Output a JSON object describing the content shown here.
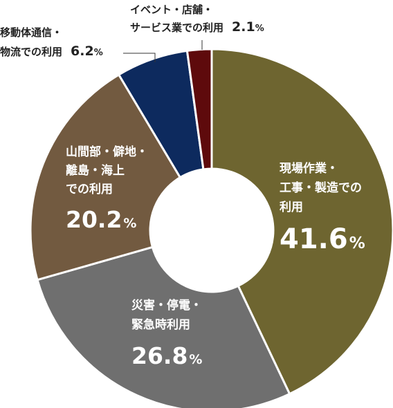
{
  "chart_data": {
    "type": "pie",
    "title": "",
    "legend": "none",
    "slices": [
      {
        "lines": [
          "現場作業・",
          "工事・製造での",
          "利用"
        ],
        "pct": "41.6",
        "value": 41.6,
        "color": "#6e6530",
        "label_color": "#ffffff"
      },
      {
        "lines": [
          "災害・停電・",
          "緊急時利用"
        ],
        "pct": "26.8",
        "value": 26.8,
        "color": "#6f6f6f",
        "label_color": "#ffffff"
      },
      {
        "lines": [
          "山間部・僻地・",
          "離島・海上",
          "での利用"
        ],
        "pct": "20.2",
        "value": 20.2,
        "color": "#725a40",
        "label_color": "#ffffff"
      },
      {
        "lines": [
          "移動体通信・",
          "物流での利用"
        ],
        "pct": "6.2",
        "value": 6.2,
        "color": "#0d2a5e",
        "label_color": "#222222"
      },
      {
        "lines": [
          "イベント・店舗・",
          "サービス業での利用"
        ],
        "pct": "2.1",
        "value": 2.1,
        "color": "#5e0a0c",
        "label_color": "#222222"
      }
    ],
    "unit": "%"
  }
}
